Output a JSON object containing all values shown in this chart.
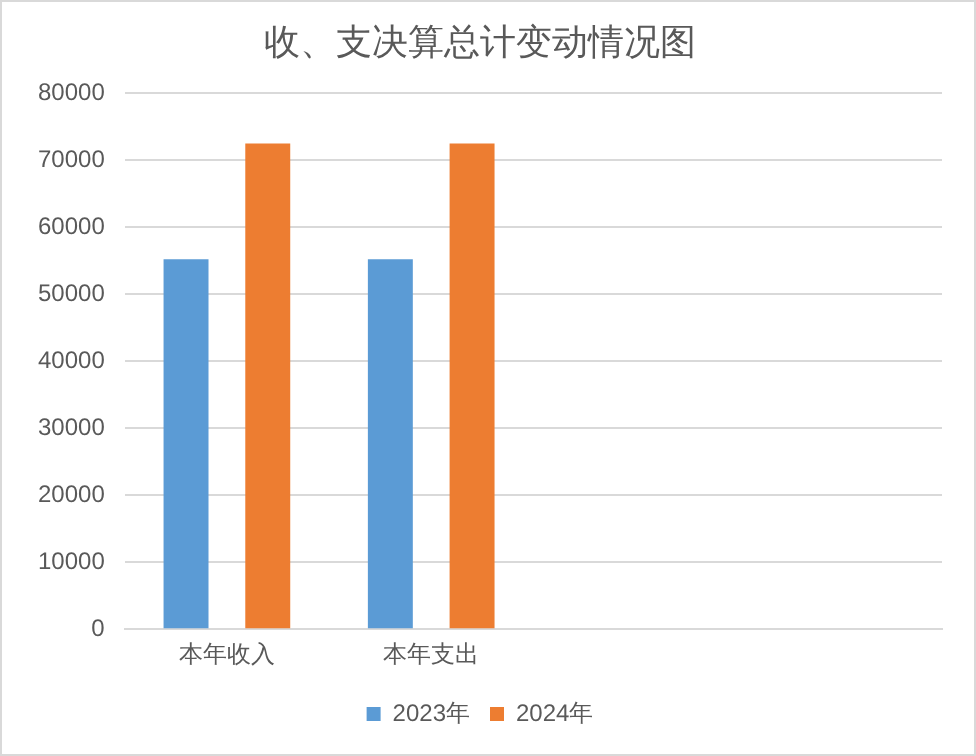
{
  "chart_data": {
    "type": "bar",
    "title": "收、支决算总计变动情况图",
    "categories": [
      "本年收入",
      "本年支出",
      null,
      null
    ],
    "series": [
      {
        "name": "2023年",
        "color": "#5b9bd5",
        "values": [
          55200,
          55200,
          null,
          null
        ]
      },
      {
        "name": "2024年",
        "color": "#ed7d31",
        "values": [
          72500,
          72500,
          null,
          null
        ]
      }
    ],
    "ylim": [
      0,
      80000
    ],
    "yticks": [
      0,
      10000,
      20000,
      30000,
      40000,
      50000,
      60000,
      70000,
      80000
    ],
    "grid": "y",
    "legend": "bottom"
  }
}
